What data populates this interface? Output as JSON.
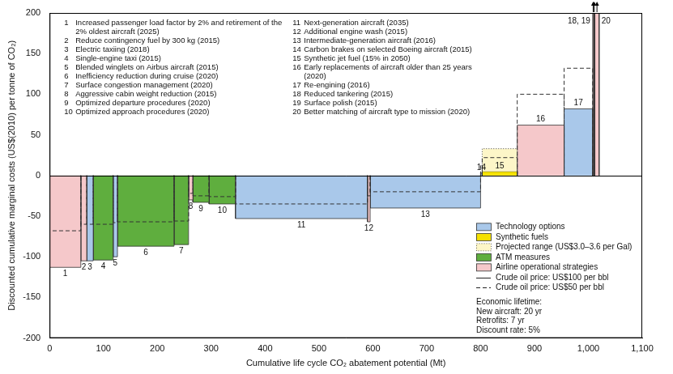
{
  "chart_data": {
    "type": "bar",
    "xlabel": "Cumulative life cycle CO₂ abatement potential (Mt)",
    "ylabel": "Discounted cumulative marginal costs (US$(2010) per tonne of CO₂)",
    "xlim": [
      0,
      1100
    ],
    "xticks": [
      0,
      100,
      200,
      300,
      400,
      500,
      600,
      700,
      800,
      900,
      {
        "value": 1000,
        "label": "1,000"
      },
      {
        "value": 1100,
        "label": "1,100"
      }
    ],
    "ylim": [
      -200,
      200
    ],
    "yticks": [
      -200,
      -150,
      -100,
      -50,
      0,
      50,
      100,
      150,
      200
    ],
    "grid": false,
    "legend": "bottom right",
    "groups": [
      {
        "name": "Technology options",
        "color": "#a9c8ea"
      },
      {
        "name": "Synthetic fuels",
        "color": "#f5e100"
      },
      {
        "name": "Projected range (US$3.0–3.6 per Gal)",
        "color": "#fdf6c8",
        "line_style": "dotted"
      },
      {
        "name": "ATM measures",
        "color": "#5fae3e"
      },
      {
        "name": "Airline operational strategies",
        "color": "#f5c8ca"
      }
    ],
    "oil_prices": [
      {
        "name": "Crude oil price: US$100 per bbl",
        "line_style": "solid"
      },
      {
        "name": "Crude oil price: US$50 per bbl",
        "line_style": "dashed"
      }
    ],
    "notes": [
      "Economic lifetime:",
      "New aircraft: 20 yr",
      "Retrofits: 7 yr",
      "Discount rate: 5%"
    ],
    "measures": [
      {
        "label": "1",
        "description": "Increased passenger load factor by 2% and retirement of the 2% oldest aircraft (2025)",
        "abatement": 58,
        "cost": -113,
        "cost_oil_50": -68,
        "group": "Airline operational strategies"
      },
      {
        "label": "2",
        "description": "Reduce contingency fuel by 300 kg (2015)",
        "abatement": 11,
        "cost": -105,
        "cost_oil_50": -60,
        "group": "Airline operational strategies"
      },
      {
        "label": "3",
        "description": "Electric taxiing (2018)",
        "abatement": 12,
        "cost": -105,
        "cost_oil_50": -60,
        "group": "Technology options"
      },
      {
        "label": "4",
        "description": "Single-engine taxi (2015)",
        "abatement": 37,
        "cost": -104,
        "cost_oil_50": -60,
        "group": "ATM measures"
      },
      {
        "label": "5",
        "description": "Blended winglets on Airbus aircraft (2015)",
        "abatement": 8,
        "cost": -100,
        "cost_oil_50": -58,
        "group": "Technology options"
      },
      {
        "label": "6",
        "description": "Inefficiency reduction during cruise (2020)",
        "abatement": 105,
        "cost": -87,
        "cost_oil_50": -57,
        "group": "ATM measures"
      },
      {
        "label": "7",
        "description": "Surface congestion management (2020)",
        "abatement": 27,
        "cost": -85,
        "cost_oil_50": -56,
        "group": "ATM measures"
      },
      {
        "label": "8",
        "description": "Aggressive cabin weight reduction (2015)",
        "abatement": 8,
        "cost": -30,
        "cost_oil_50": -22,
        "group": "Airline operational strategies"
      },
      {
        "label": "9",
        "description": "Optimized departure procedures (2020)",
        "abatement": 30,
        "cost": -33,
        "cost_oil_50": -25,
        "group": "ATM measures"
      },
      {
        "label": "10",
        "description": "Optimized approach procedures (2020)",
        "abatement": 49,
        "cost": -35,
        "cost_oil_50": -26,
        "group": "ATM measures"
      },
      {
        "label": "11",
        "description": "Next-generation aircraft (2035)",
        "abatement": 245,
        "cost": -53,
        "cost_oil_50": -35,
        "group": "Technology options"
      },
      {
        "label": "12",
        "description": "Additional engine wash (2015)",
        "abatement": 5,
        "cost": -57,
        "cost_oil_50": -25,
        "group": "Airline operational strategies"
      },
      {
        "label": "13",
        "description": "Intermediate-generation aircraft (2016)",
        "abatement": 205,
        "cost": -40,
        "cost_oil_50": -20,
        "group": "Technology options"
      },
      {
        "label": "14",
        "description": "Carbon brakes on selected Boeing aircraft (2015)",
        "abatement": 3,
        "cost": 3,
        "cost_oil_50": 12,
        "group": "Technology options"
      },
      {
        "label": "15",
        "description": "Synthetic jet fuel (15% in 2050)",
        "abatement": 65,
        "cost": 5,
        "cost_oil_50": 22,
        "range": [
          5,
          33
        ],
        "group": "Synthetic fuels"
      },
      {
        "label": "16",
        "description": "Early replacements of aircraft older than 25 years (2020)",
        "abatement": 87,
        "cost": 62,
        "cost_oil_50": 100,
        "group": "Airline operational strategies"
      },
      {
        "label": "17",
        "description": "Re-engining (2016)",
        "abatement": 53,
        "cost": 82,
        "cost_oil_50": 132,
        "group": "Technology options"
      },
      {
        "label": "18",
        "bar_label": "18, 19",
        "description": "Reduced tankering (2015)",
        "abatement": 2,
        "cost": 250,
        "cost_oil_50": null,
        "group": "Airline operational strategies"
      },
      {
        "label": "19",
        "bar_label": null,
        "description": "Surface polish (2015)",
        "abatement": 2,
        "cost": 250,
        "cost_oil_50": null,
        "group": "Airline operational strategies"
      },
      {
        "label": "20",
        "description": "Better matching of aircraft type to mission (2020)",
        "abatement": 8,
        "cost": 250,
        "cost_oil_50": null,
        "group": "Airline operational strategies"
      }
    ]
  }
}
